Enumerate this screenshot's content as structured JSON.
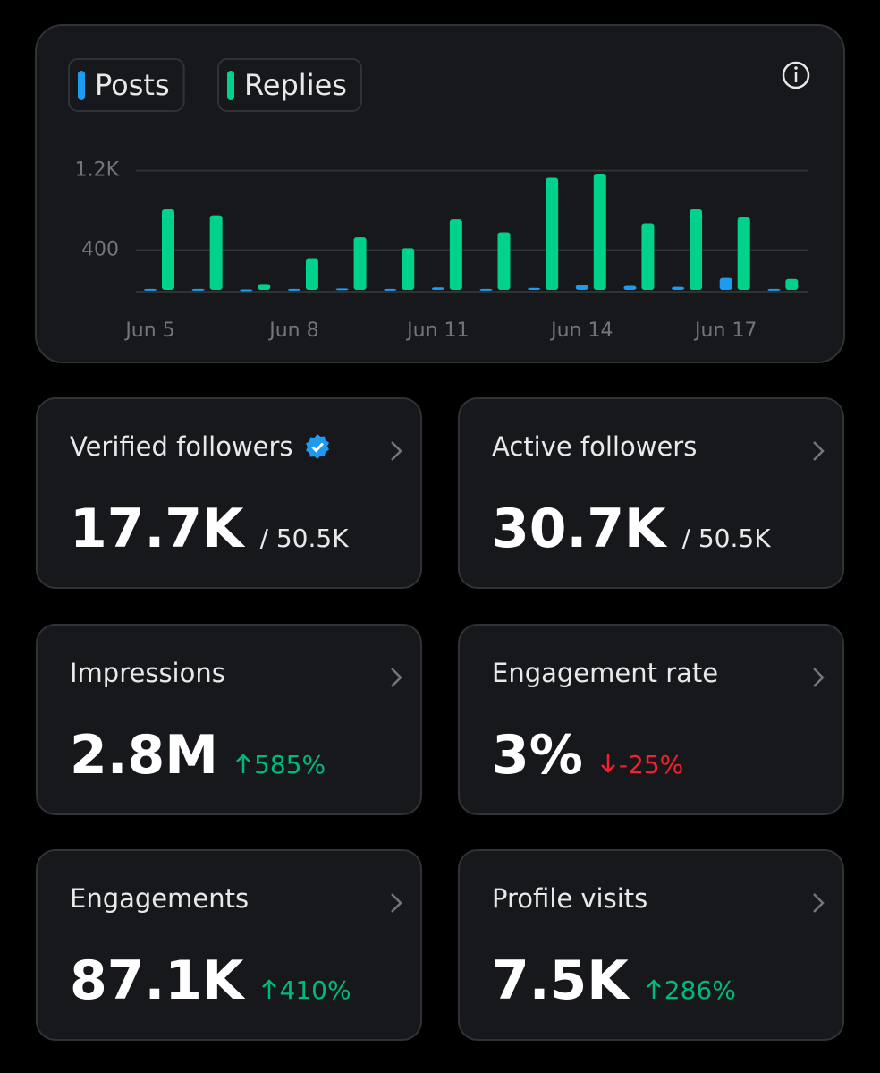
{
  "chart_data": {
    "type": "bar",
    "categories": [
      "Jun 5",
      null,
      null,
      "Jun 8",
      null,
      null,
      "Jun 11",
      null,
      null,
      "Jun 14",
      null,
      null,
      "Jun 17",
      null
    ],
    "series": [
      {
        "name": "Posts",
        "color": "#1d9bf0",
        "values": [
          10,
          10,
          5,
          10,
          15,
          10,
          25,
          10,
          20,
          50,
          40,
          30,
          120,
          10
        ]
      },
      {
        "name": "Replies",
        "color": "#00d18b",
        "values": [
          810,
          750,
          60,
          320,
          530,
          420,
          710,
          580,
          1130,
          1170,
          670,
          810,
          730,
          110
        ]
      }
    ],
    "ylim": [
      0,
      1350
    ],
    "yticks": [
      400,
      {
        "value": 1200,
        "label": "1.2K"
      }
    ],
    "grid": true
  },
  "cards": [
    {
      "title": "Verified followers",
      "verified": true,
      "value": "17.7K",
      "total": "/ 50.5K"
    },
    {
      "title": "Active followers",
      "value": "30.7K",
      "total": "/ 50.5K"
    },
    {
      "title": "Impressions",
      "value": "2.8M",
      "change": "585%",
      "trend": "up"
    },
    {
      "title": "Engagement rate",
      "value": "3%",
      "change": "-25%",
      "trend": "down"
    },
    {
      "title": "Engagements",
      "value": "87.1K",
      "change": "410%",
      "trend": "up"
    },
    {
      "title": "Profile visits",
      "value": "7.5K",
      "change": "286%",
      "trend": "up"
    }
  ]
}
